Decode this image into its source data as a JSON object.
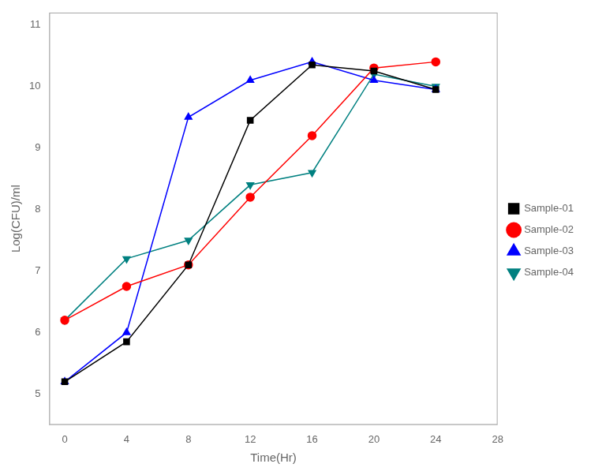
{
  "chart_data": {
    "type": "line",
    "x": [
      0,
      4,
      8,
      12,
      16,
      20,
      24
    ],
    "series": [
      {
        "name": "Sample-01",
        "color": "#000000",
        "marker": "square",
        "values": [
          5.2,
          5.85,
          7.1,
          9.45,
          10.35,
          10.25,
          9.95
        ]
      },
      {
        "name": "Sample-02",
        "color": "#ff0000",
        "marker": "circle",
        "values": [
          6.2,
          6.75,
          7.1,
          8.2,
          9.2,
          10.3,
          10.4
        ]
      },
      {
        "name": "Sample-03",
        "color": "#0000ff",
        "marker": "triangle",
        "values": [
          5.2,
          6.0,
          9.5,
          10.1,
          10.4,
          10.1,
          9.95
        ]
      },
      {
        "name": "Sample-04",
        "color": "#008080",
        "marker": "triangle_down",
        "values": [
          6.2,
          7.2,
          7.5,
          8.4,
          8.6,
          10.2,
          10.0
        ]
      }
    ],
    "xlabel": "Time(Hr)",
    "ylabel": "Log(CFU)/ml",
    "xlim": [
      -1,
      28
    ],
    "ylim": [
      4.5,
      11.2
    ],
    "xticks": [
      0,
      4,
      8,
      12,
      16,
      20,
      24,
      28
    ],
    "yticks": [
      5,
      6,
      7,
      8,
      9,
      10,
      11
    ],
    "grid": false,
    "legend": "right"
  }
}
